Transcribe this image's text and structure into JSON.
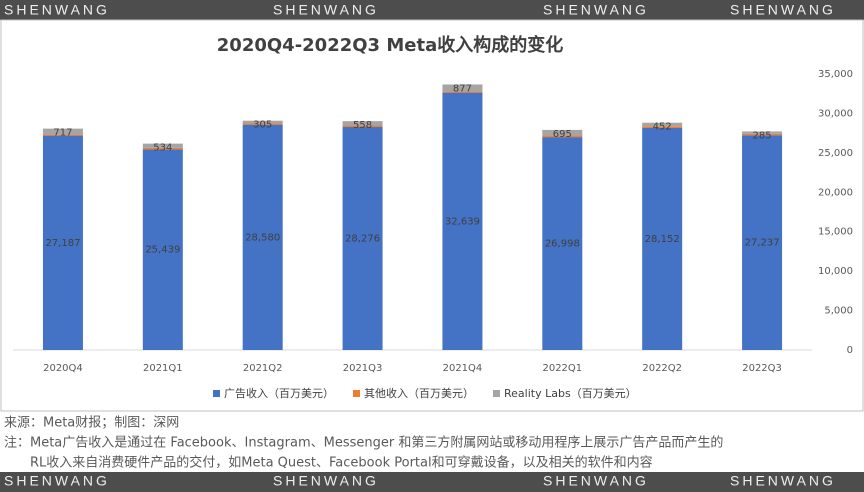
{
  "watermarks": [
    "SHENWANG",
    "SHENWANG",
    "SHENWANG",
    "SHENWANG"
  ],
  "notes": [
    "来源：Meta财报；制图：深网",
    "注：Meta广告收入是通过在 Facebook、Instagram、Messenger 和第三方附属网站或移动用程序上展示广告产品而产生的",
    "RL收入来自消费硬件产品的交付，如Meta Quest、Facebook Portal和可穿戴设备，以及相关的软件和内容"
  ],
  "chart_data": {
    "type": "bar",
    "stacked": true,
    "title": "2020Q4-2022Q3 Meta收入构成的变化",
    "categories": [
      "2020Q4",
      "2021Q1",
      "2021Q2",
      "2021Q3",
      "2021Q4",
      "2022Q1",
      "2022Q2",
      "2022Q3"
    ],
    "series": [
      {
        "name": "广告收入（百万美元）",
        "color": "#4472c4",
        "values": [
          27187,
          25439,
          28580,
          28276,
          32639,
          26998,
          28152,
          27237
        ],
        "value_labels": [
          "27,187",
          "25,439",
          "28,580",
          "28,276",
          "32,639",
          "26,998",
          "28,152",
          "27,237"
        ]
      },
      {
        "name": "其他收入（百万美元）",
        "color": "#ed7d31",
        "values": [
          168,
          198,
          192,
          187,
          155,
          215,
          218,
          192
        ]
      },
      {
        "name": "Reality Labs（百万美元）",
        "color": "#a5a5a5",
        "values": [
          717,
          534,
          305,
          558,
          877,
          695,
          452,
          285
        ]
      }
    ],
    "ylim": [
      0,
      35000
    ],
    "yticks": [
      0,
      {
        "value": 5000,
        "label": "5,000"
      },
      {
        "value": 10000,
        "label": "10,000"
      },
      {
        "value": 15000,
        "label": "15,000"
      },
      {
        "value": 20000,
        "label": "20,000"
      },
      {
        "value": 25000,
        "label": "25,000"
      },
      {
        "value": 30000,
        "label": "30,000"
      },
      {
        "value": 35000,
        "label": "35,000"
      }
    ],
    "grid": false
  }
}
